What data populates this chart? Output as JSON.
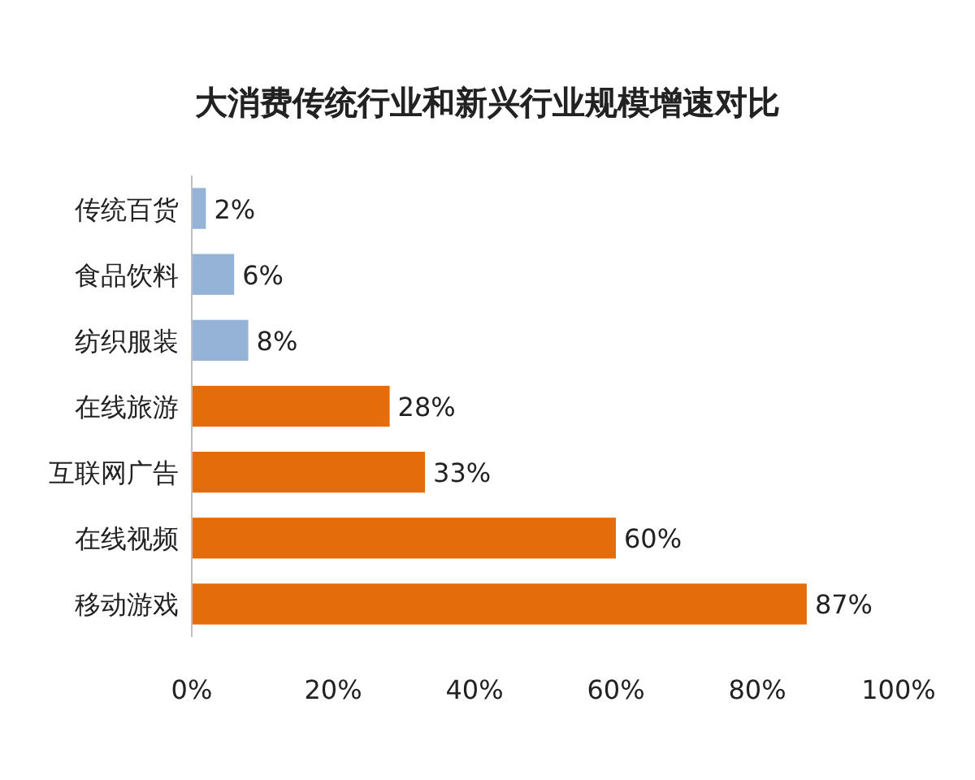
{
  "chart_data": {
    "type": "bar",
    "orientation": "horizontal",
    "title": "大消费传统行业和新兴行业规模增速对比",
    "categories": [
      "传统百货",
      "食品饮料",
      "纺织服装",
      "在线旅游",
      "互联网广告",
      "在线视频",
      "移动游戏"
    ],
    "values": [
      2,
      6,
      8,
      28,
      33,
      60,
      87
    ],
    "colors": [
      "#95b3d7",
      "#95b3d7",
      "#95b3d7",
      "#e46c0a",
      "#e46c0a",
      "#e46c0a",
      "#e46c0a"
    ],
    "value_labels": [
      "2%",
      "6%",
      "8%",
      "28%",
      "33%",
      "60%",
      "87%"
    ],
    "xlim": [
      0,
      100
    ],
    "xticks": [
      {
        "value": 0,
        "label": "0%"
      },
      {
        "value": 20,
        "label": "20%"
      },
      {
        "value": 40,
        "label": "40%"
      },
      {
        "value": 60,
        "label": "60%"
      },
      {
        "value": 80,
        "label": "80%"
      },
      {
        "value": 100,
        "label": "100%"
      }
    ]
  }
}
